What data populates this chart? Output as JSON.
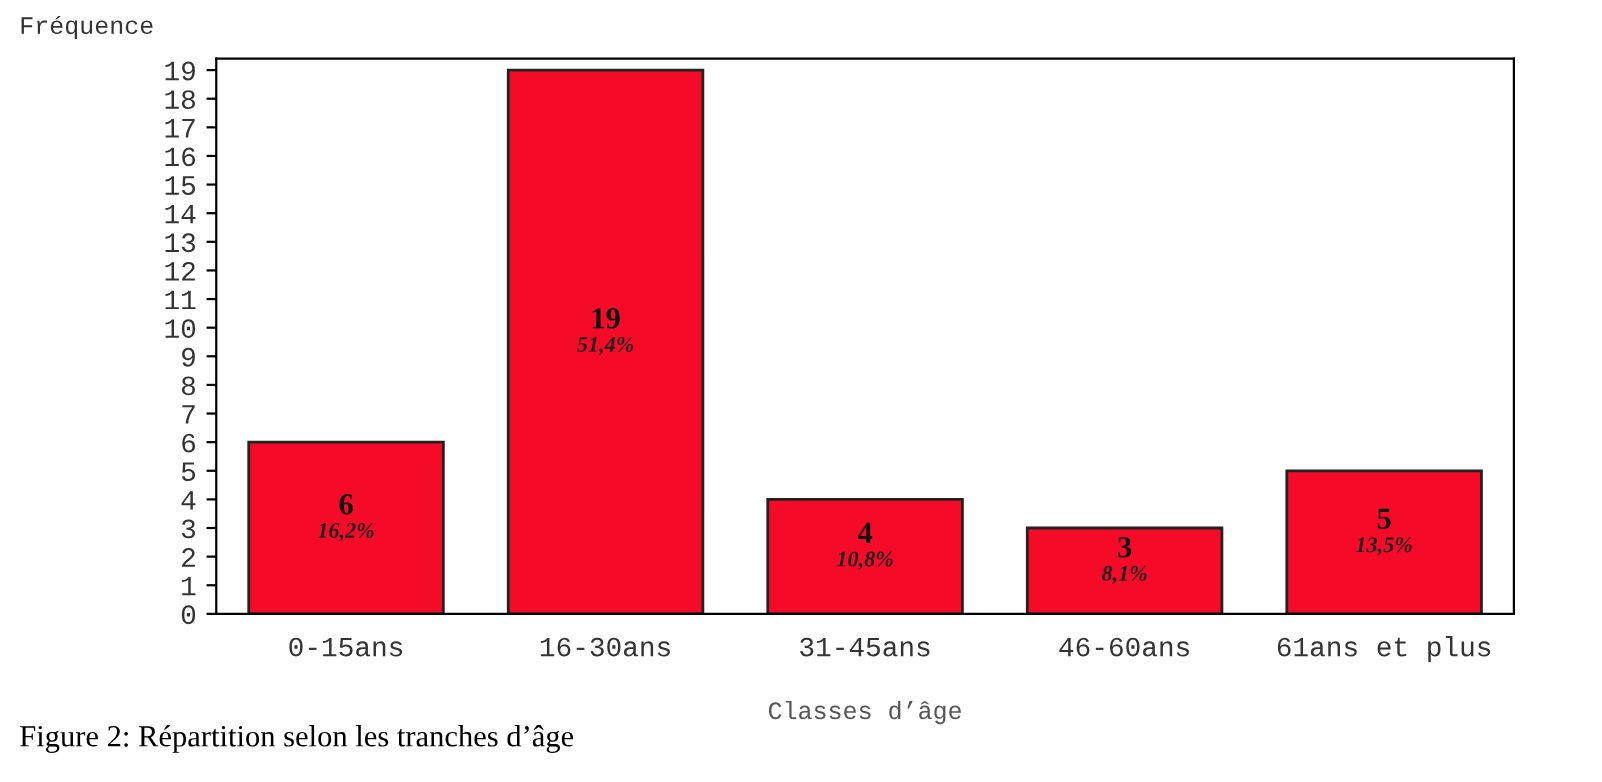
{
  "chart_data": {
    "type": "bar",
    "title": "Figure 2: Répartition selon les tranches d’âge",
    "xlabel": "Classes d’âge",
    "ylabel": "Fréquence",
    "categories": [
      "0-15ans",
      "16-30ans",
      "31-45ans",
      "46-60ans",
      "61ans et plus"
    ],
    "values": [
      6,
      19,
      4,
      3,
      5
    ],
    "value_labels": [
      "6\n16,2%",
      "19\n51,4%",
      "4\n10,8%",
      "3\n8,1%",
      "5\n13,5%"
    ],
    "color": "#f50a28",
    "ylim": [
      0,
      19.4
    ],
    "yticks": [
      0,
      1,
      2,
      3,
      4,
      5,
      6,
      7,
      8,
      9,
      10,
      11,
      12,
      13,
      14,
      15,
      16,
      17,
      18,
      19
    ],
    "grid": false
  }
}
